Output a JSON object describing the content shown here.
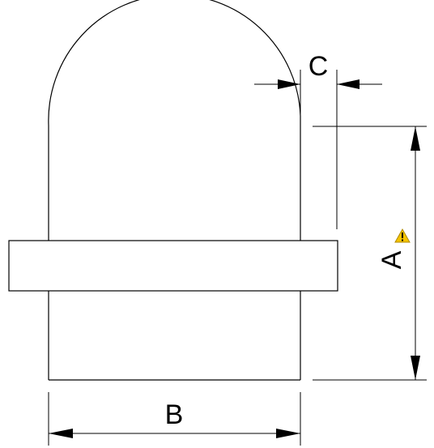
{
  "drawing": {
    "dimensions": {
      "a_label": "A",
      "b_label": "B",
      "c_label": "C"
    },
    "warning_icon": "warning-triangle-icon",
    "colors": {
      "line": "#000000",
      "background": "#ffffff",
      "warning_fill": "#f5c400",
      "warning_stroke": "#b08a00"
    }
  }
}
